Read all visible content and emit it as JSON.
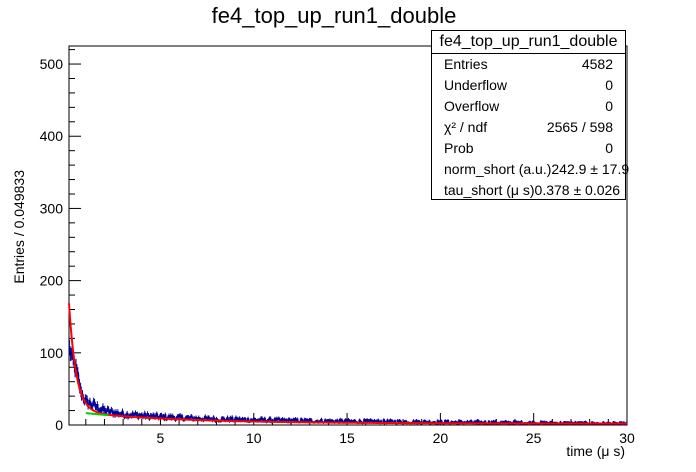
{
  "chart_data": {
    "type": "histogram",
    "title": "fe4_top_up_run1_double",
    "xlabel": "time (μ s)",
    "ylabel": "Entries / 0.049833",
    "xlim": [
      0.1,
      30
    ],
    "ylim": [
      0,
      525
    ],
    "x_ticks": [
      5,
      10,
      15,
      20,
      25,
      30
    ],
    "y_ticks": [
      0,
      100,
      200,
      300,
      400,
      500
    ],
    "bin_width": 0.049833,
    "histogram_color": "#000099",
    "fit_color": "#ff0000",
    "secondary_fit_color": "#00cc00",
    "histogram_peaks": [
      [
        0.15,
        105
      ],
      [
        0.25,
        92
      ],
      [
        0.35,
        86
      ],
      [
        0.45,
        78
      ],
      [
        0.55,
        70
      ],
      [
        0.65,
        55
      ],
      [
        0.75,
        45
      ],
      [
        0.85,
        40
      ],
      [
        1.0,
        32
      ],
      [
        1.2,
        30
      ],
      [
        1.4,
        28
      ],
      [
        1.6,
        25
      ],
      [
        1.8,
        22
      ],
      [
        2.0,
        20
      ],
      [
        2.5,
        17
      ],
      [
        3.0,
        15
      ],
      [
        3.5,
        14
      ],
      [
        4.0,
        13
      ],
      [
        5.0,
        11
      ],
      [
        6.0,
        10
      ],
      [
        7.0,
        9
      ],
      [
        8.0,
        8
      ],
      [
        10.0,
        7
      ],
      [
        12.0,
        6
      ],
      [
        15.0,
        5
      ],
      [
        20.0,
        4
      ],
      [
        25.0,
        3
      ],
      [
        30.0,
        2
      ]
    ],
    "fit": {
      "model": "double exponential",
      "norm_short": 242.9,
      "tau_short": 0.378
    },
    "stats": {
      "title": "fe4_top_up_run1_double",
      "rows": [
        {
          "key": "Entries",
          "value": "4582"
        },
        {
          "key": "Underflow",
          "value": "0"
        },
        {
          "key": "Overflow",
          "value": "0"
        },
        {
          "key": "χ² / ndf",
          "value": "2565 / 598"
        },
        {
          "key": "Prob",
          "value": "0"
        },
        {
          "key": "norm_short (a.u.)",
          "value": "242.9 ± 17.9"
        },
        {
          "key": "tau_short (μ s)",
          "value": "0.378 ± 0.026"
        }
      ]
    }
  }
}
